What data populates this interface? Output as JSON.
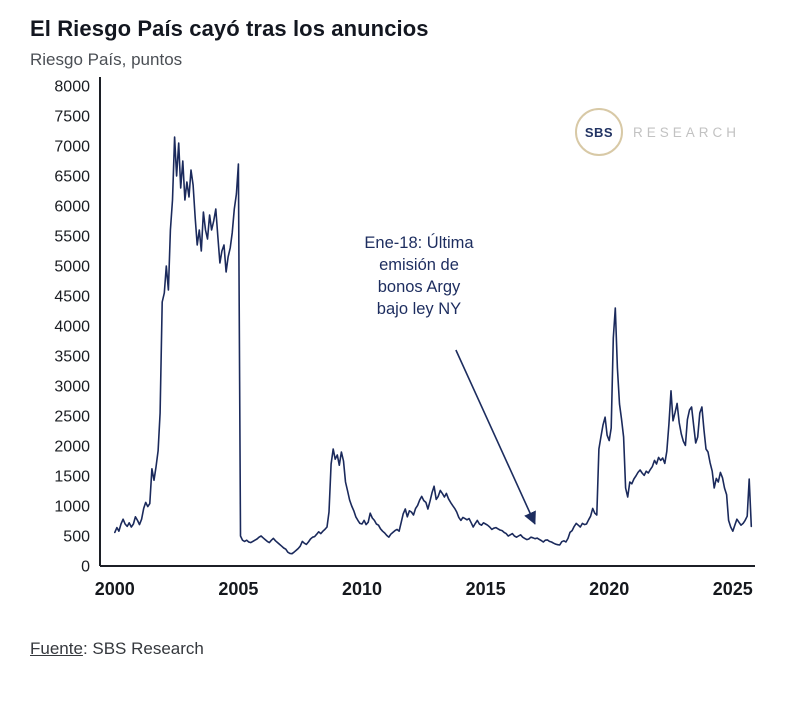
{
  "page": {
    "title": "El Riesgo País cayó tras los anuncios",
    "subtitle": "Riesgo País, puntos",
    "source_label": "Fuente",
    "source_text": ": SBS Research"
  },
  "logo": {
    "circle_text": "SBS",
    "wordmark": "RESEARCH"
  },
  "annotation": {
    "lines": [
      "Ene-18: Última",
      "emisión de",
      "bonos Argy",
      "bajo ley NY"
    ],
    "arrow": {
      "from": [
        2013.8,
        3600
      ],
      "to": [
        2017.0,
        700
      ]
    }
  },
  "colors": {
    "line": "#1b2a5c",
    "axis": "#1c1f26",
    "annotation": "#1d2d5f",
    "logo_ring": "#d8c9a6",
    "logo_text": "#223463",
    "wordmark": "#c2c2c2"
  },
  "chart_data": {
    "type": "line",
    "title": "El Riesgo País cayó tras los anuncios",
    "subtitle": "Riesgo País, puntos",
    "xlabel": "",
    "ylabel": "Riesgo País, puntos",
    "ylim": [
      0,
      8000
    ],
    "ytick_step": 500,
    "xlim": [
      1999.4,
      2025.9
    ],
    "xticks": [
      2000,
      2005,
      2010,
      2015,
      2020,
      2025
    ],
    "grid": false,
    "legend": false,
    "x_start": 2000.0,
    "x_step": 0.0833333,
    "x_frequency": "monthly",
    "series": [
      {
        "name": "Riesgo País (puntos)",
        "color": "#1b2a5c",
        "values": [
          560,
          640,
          580,
          700,
          780,
          700,
          660,
          720,
          650,
          700,
          820,
          760,
          690,
          780,
          960,
          1060,
          990,
          1040,
          1620,
          1430,
          1650,
          1920,
          2550,
          4400,
          4550,
          5000,
          4600,
          5600,
          6100,
          7150,
          6500,
          7050,
          6300,
          6750,
          6100,
          6400,
          6150,
          6600,
          6350,
          5800,
          5350,
          5600,
          5250,
          5900,
          5600,
          5450,
          5850,
          5600,
          5750,
          5950,
          5500,
          5050,
          5250,
          5350,
          4900,
          5150,
          5300,
          5550,
          5950,
          6200,
          6700,
          500,
          430,
          410,
          430,
          400,
          390,
          410,
          430,
          450,
          480,
          500,
          470,
          440,
          410,
          390,
          430,
          460,
          420,
          390,
          360,
          330,
          300,
          280,
          230,
          210,
          205,
          230,
          260,
          290,
          330,
          410,
          380,
          360,
          400,
          450,
          480,
          490,
          530,
          570,
          540,
          580,
          610,
          650,
          900,
          1700,
          1950,
          1780,
          1850,
          1680,
          1900,
          1750,
          1400,
          1250,
          1100,
          1000,
          920,
          820,
          760,
          710,
          700,
          760,
          690,
          730,
          880,
          800,
          760,
          700,
          680,
          620,
          580,
          550,
          510,
          480,
          530,
          560,
          590,
          610,
          580,
          720,
          870,
          950,
          820,
          920,
          900,
          850,
          960,
          1010,
          1100,
          1160,
          1090,
          1060,
          950,
          1080,
          1220,
          1330,
          1110,
          1160,
          1260,
          1210,
          1150,
          1210,
          1120,
          1060,
          1010,
          960,
          900,
          810,
          760,
          810,
          790,
          770,
          790,
          720,
          650,
          710,
          760,
          700,
          680,
          720,
          700,
          680,
          650,
          610,
          630,
          640,
          620,
          600,
          590,
          560,
          540,
          500,
          520,
          540,
          500,
          480,
          500,
          520,
          480,
          460,
          440,
          450,
          480,
          470,
          455,
          465,
          445,
          425,
          400,
          430,
          435,
          410,
          400,
          380,
          365,
          355,
          350,
          405,
          420,
          400,
          460,
          560,
          590,
          660,
          710,
          680,
          650,
          710,
          690,
          700,
          770,
          830,
          960,
          880,
          850,
          1950,
          2150,
          2350,
          2480,
          2180,
          2090,
          2300,
          3800,
          4300,
          3300,
          2700,
          2450,
          2150,
          1300,
          1150,
          1400,
          1370,
          1450,
          1500,
          1560,
          1600,
          1550,
          1510,
          1580,
          1550,
          1610,
          1660,
          1760,
          1700,
          1810,
          1760,
          1800,
          1710,
          1910,
          2360,
          2920,
          2420,
          2560,
          2710,
          2390,
          2200,
          2080,
          2010,
          2440,
          2600,
          2650,
          2350,
          2050,
          2150,
          2550,
          2650,
          2280,
          1950,
          1900,
          1720,
          1580,
          1300,
          1460,
          1400,
          1560,
          1470,
          1300,
          1190,
          760,
          650,
          580,
          680,
          780,
          730,
          680,
          710,
          760,
          830,
          1450,
          660
        ]
      }
    ]
  }
}
